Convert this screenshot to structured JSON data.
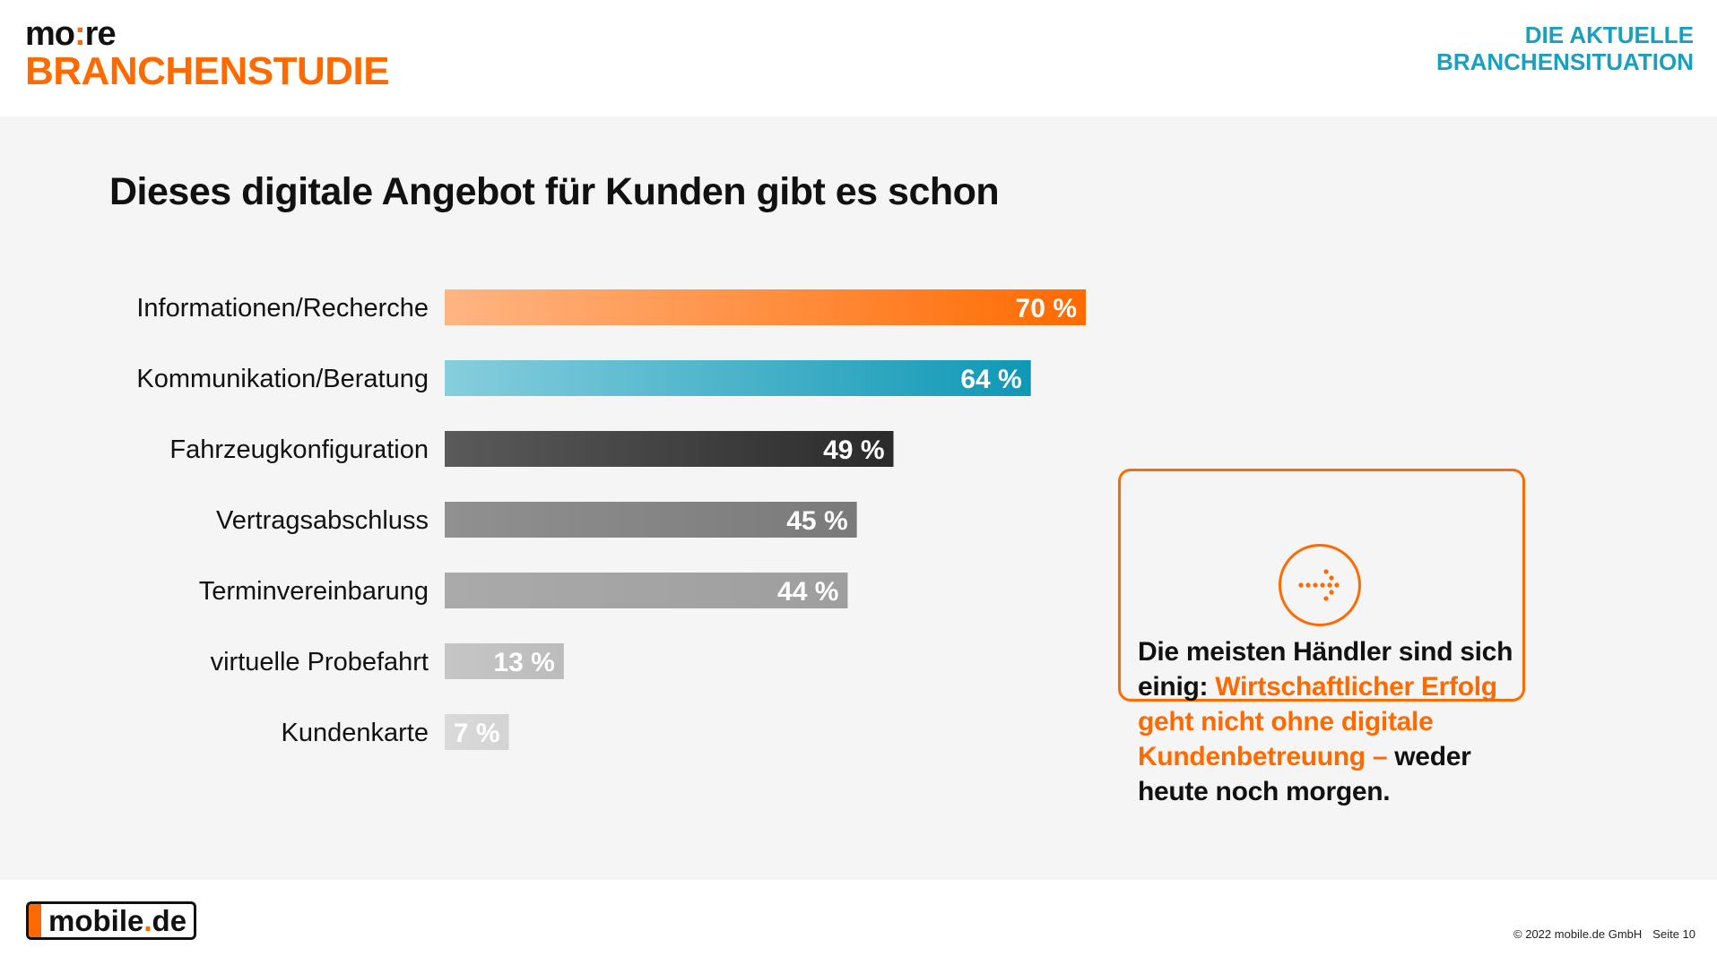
{
  "header": {
    "brand_top_a": "mo",
    "brand_top_colon": ":",
    "brand_top_b": "re",
    "brand_bottom": "BRANCHENSTUDIE",
    "section_line1": "DIE AKTUELLE",
    "section_line2": "BRANCHENSITUATION"
  },
  "colors": {
    "accent_orange": "#ff6a00",
    "accent_teal": "#1a9fbe"
  },
  "chart_data": {
    "type": "bar",
    "orientation": "horizontal",
    "title": "Dieses digitale Angebot für Kunden gibt es schon",
    "unit": "%",
    "xlim": [
      0,
      70
    ],
    "categories": [
      "Informationen/Recherche",
      "Kommunikation/Beratung",
      "Fahrzeugkonfiguration",
      "Vertragsabschluss",
      "Terminvereinbarung",
      "virtuelle Probefahrt",
      "Kundenkarte"
    ],
    "values": [
      70,
      64,
      49,
      45,
      44,
      13,
      7
    ],
    "labels": [
      "70 %",
      "64 %",
      "49 %",
      "45 %",
      "44 %",
      "13 %",
      "7 %"
    ],
    "bar_colors": [
      [
        "#ffb583",
        "#ff6a00"
      ],
      [
        "#86cedd",
        "#0f98b6"
      ],
      [
        "#5a5a5a",
        "#2b2b2b"
      ],
      [
        "#909090",
        "#7a7a7a"
      ],
      [
        "#aaaaaa",
        "#9e9e9e"
      ],
      [
        "#c6c6c6",
        "#bcbcbc"
      ],
      [
        "#dadada",
        "#d3d3d3"
      ]
    ]
  },
  "callout": {
    "icon": "dotted-arrow-right-icon",
    "text_a": "Die meisten Händler sind sich einig: ",
    "text_highlight": "Wirtschaftlicher Erfolg geht nicht ohne digitale Kundenbetreuung –",
    "text_b": " weder heute noch morgen."
  },
  "footer": {
    "logo_a": "mobile",
    "logo_dot": ".",
    "logo_b": "de",
    "copyright": "© 2022 mobile.de GmbH",
    "page": "Seite 10"
  }
}
